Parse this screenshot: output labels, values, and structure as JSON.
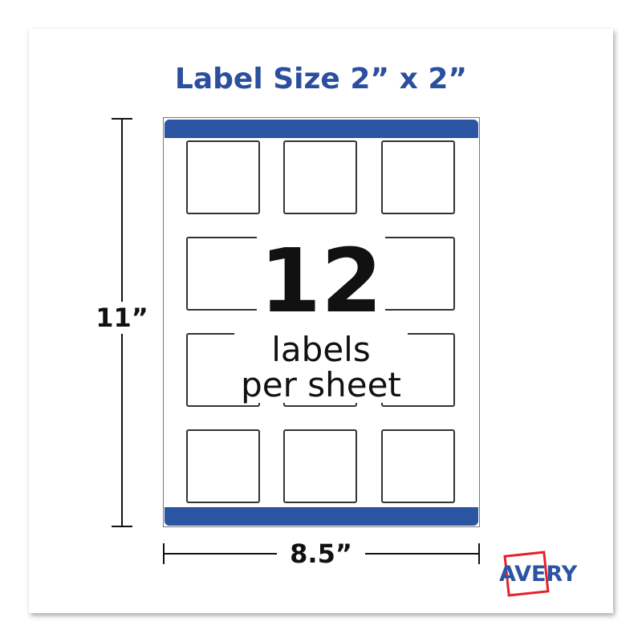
{
  "title": "Label Size 2” x 2”",
  "count": "12",
  "count_caption_line1": "labels",
  "count_caption_line2": "per sheet",
  "height_dimension": "11”",
  "width_dimension": "8.5”",
  "brand": "AVERY",
  "colors": {
    "brand_blue": "#2b54a3",
    "logo_red": "#e8202a",
    "title_blue": "#2b4f9e"
  },
  "labels_grid": {
    "rows": 4,
    "columns": 3
  }
}
